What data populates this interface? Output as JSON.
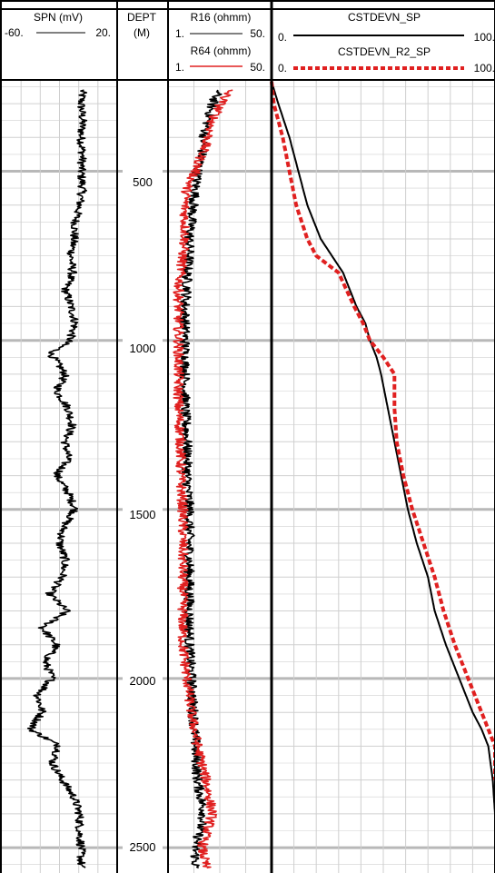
{
  "chart_data": {
    "type": "line",
    "depth_track": {
      "title": "DEPT",
      "unit": "(M)",
      "ticks": [
        500,
        1000,
        1500,
        2000,
        2500
      ]
    },
    "y_axis": {
      "label": "DEPT (M)",
      "range": [
        230,
        2575
      ],
      "inverted": true,
      "grid_major": 500,
      "grid_minor": 50
    },
    "tracks": [
      {
        "name": "spn",
        "curves": [
          {
            "name": "SPN (mV)",
            "min_label": "-60.",
            "max_label": "20.",
            "range": [
              -60,
              20
            ],
            "color": "#000000",
            "dash": "solid",
            "points": [
              [
                260,
                -4
              ],
              [
                300,
                -5
              ],
              [
                350,
                -4
              ],
              [
                400,
                -5
              ],
              [
                450,
                -4
              ],
              [
                500,
                -5
              ],
              [
                550,
                -4
              ],
              [
                600,
                -6
              ],
              [
                650,
                -9
              ],
              [
                700,
                -10
              ],
              [
                750,
                -12
              ],
              [
                800,
                -11
              ],
              [
                850,
                -16
              ],
              [
                900,
                -12
              ],
              [
                950,
                -9
              ],
              [
                1000,
                -13
              ],
              [
                1040,
                -26
              ],
              [
                1100,
                -16
              ],
              [
                1150,
                -22
              ],
              [
                1200,
                -14
              ],
              [
                1250,
                -11
              ],
              [
                1300,
                -16
              ],
              [
                1350,
                -14
              ],
              [
                1400,
                -22
              ],
              [
                1450,
                -14
              ],
              [
                1500,
                -9
              ],
              [
                1550,
                -17
              ],
              [
                1600,
                -20
              ],
              [
                1650,
                -16
              ],
              [
                1700,
                -18
              ],
              [
                1750,
                -27
              ],
              [
                1800,
                -15
              ],
              [
                1850,
                -32
              ],
              [
                1900,
                -22
              ],
              [
                1950,
                -30
              ],
              [
                2000,
                -25
              ],
              [
                2050,
                -35
              ],
              [
                2100,
                -32
              ],
              [
                2150,
                -40
              ],
              [
                2200,
                -20
              ],
              [
                2250,
                -25
              ],
              [
                2300,
                -18
              ],
              [
                2350,
                -10
              ],
              [
                2400,
                -6
              ],
              [
                2450,
                -6
              ],
              [
                2500,
                -5
              ],
              [
                2560,
                -5
              ]
            ]
          }
        ]
      },
      {
        "name": "resistivity",
        "curves": [
          {
            "name": "R16 (ohmm)",
            "min_label": "1.",
            "max_label": "50.",
            "range": [
              1,
              50
            ],
            "color": "#000000",
            "dash": "solid",
            "points": [
              [
                260,
                25
              ],
              [
                300,
                22
              ],
              [
                350,
                20
              ],
              [
                400,
                18
              ],
              [
                450,
                17
              ],
              [
                500,
                15
              ],
              [
                550,
                14
              ],
              [
                600,
                13
              ],
              [
                650,
                12
              ],
              [
                700,
                11
              ],
              [
                750,
                11
              ],
              [
                800,
                10
              ],
              [
                850,
                10
              ],
              [
                900,
                9
              ],
              [
                950,
                9
              ],
              [
                1000,
                9
              ],
              [
                1100,
                9
              ],
              [
                1200,
                9
              ],
              [
                1300,
                10
              ],
              [
                1400,
                10
              ],
              [
                1500,
                11
              ],
              [
                1600,
                11
              ],
              [
                1700,
                11
              ],
              [
                1800,
                11
              ],
              [
                1900,
                11
              ],
              [
                2000,
                12
              ],
              [
                2100,
                13
              ],
              [
                2200,
                14
              ],
              [
                2300,
                15
              ],
              [
                2400,
                18
              ],
              [
                2500,
                14
              ],
              [
                2560,
                14
              ]
            ]
          },
          {
            "name": "R64 (ohmm)",
            "min_label": "1.",
            "max_label": "50.",
            "range": [
              1,
              50
            ],
            "color": "#e02020",
            "dash": "solid",
            "points": [
              [
                260,
                30
              ],
              [
                300,
                26
              ],
              [
                350,
                22
              ],
              [
                400,
                20
              ],
              [
                450,
                17
              ],
              [
                500,
                14
              ],
              [
                550,
                10
              ],
              [
                600,
                9
              ],
              [
                650,
                9
              ],
              [
                700,
                9
              ],
              [
                750,
                8
              ],
              [
                800,
                7
              ],
              [
                850,
                6
              ],
              [
                900,
                6
              ],
              [
                950,
                6
              ],
              [
                1000,
                6
              ],
              [
                1100,
                6
              ],
              [
                1200,
                6
              ],
              [
                1300,
                7
              ],
              [
                1400,
                7
              ],
              [
                1500,
                8
              ],
              [
                1600,
                8
              ],
              [
                1700,
                8
              ],
              [
                1800,
                8
              ],
              [
                1900,
                8
              ],
              [
                2000,
                10
              ],
              [
                2100,
                12
              ],
              [
                2200,
                15
              ],
              [
                2300,
                19
              ],
              [
                2400,
                22
              ],
              [
                2500,
                17
              ],
              [
                2560,
                19
              ]
            ]
          }
        ]
      },
      {
        "name": "deviation",
        "curves": [
          {
            "name": "CSTDEVN_SP",
            "min_label": "0.",
            "max_label": "100.",
            "range": [
              0,
              100
            ],
            "color": "#000000",
            "dash": "solid",
            "points": [
              [
                235,
                0
              ],
              [
                300,
                3
              ],
              [
                400,
                8
              ],
              [
                500,
                12
              ],
              [
                600,
                16
              ],
              [
                700,
                22
              ],
              [
                750,
                27
              ],
              [
                800,
                32
              ],
              [
                900,
                38
              ],
              [
                950,
                42
              ],
              [
                1000,
                44
              ],
              [
                1050,
                47
              ],
              [
                1100,
                49
              ],
              [
                1200,
                52
              ],
              [
                1300,
                55
              ],
              [
                1400,
                58
              ],
              [
                1500,
                61
              ],
              [
                1600,
                65
              ],
              [
                1700,
                70
              ],
              [
                1800,
                73
              ],
              [
                1900,
                78
              ],
              [
                2000,
                84
              ],
              [
                2100,
                90
              ],
              [
                2150,
                94
              ],
              [
                2200,
                97
              ],
              [
                2250,
                98
              ],
              [
                2300,
                99
              ],
              [
                2400,
                100
              ],
              [
                2575,
                100
              ]
            ]
          },
          {
            "name": "CSTDEVN_R2_SP",
            "min_label": "0.",
            "max_label": "100.",
            "range": [
              0,
              100
            ],
            "color": "#e02020",
            "dash": "dashed",
            "points": [
              [
                235,
                0
              ],
              [
                300,
                1
              ],
              [
                400,
                5
              ],
              [
                500,
                8
              ],
              [
                600,
                11
              ],
              [
                700,
                16
              ],
              [
                750,
                20
              ],
              [
                800,
                30
              ],
              [
                900,
                37
              ],
              [
                950,
                41
              ],
              [
                1000,
                44
              ],
              [
                1050,
                50
              ],
              [
                1100,
                55
              ],
              [
                1200,
                55
              ],
              [
                1300,
                56
              ],
              [
                1400,
                59
              ],
              [
                1500,
                63
              ],
              [
                1600,
                68
              ],
              [
                1700,
                73
              ],
              [
                1800,
                77
              ],
              [
                1900,
                82
              ],
              [
                2000,
                88
              ],
              [
                2100,
                94
              ],
              [
                2200,
                100
              ],
              [
                2300,
                100
              ]
            ]
          }
        ]
      }
    ]
  }
}
